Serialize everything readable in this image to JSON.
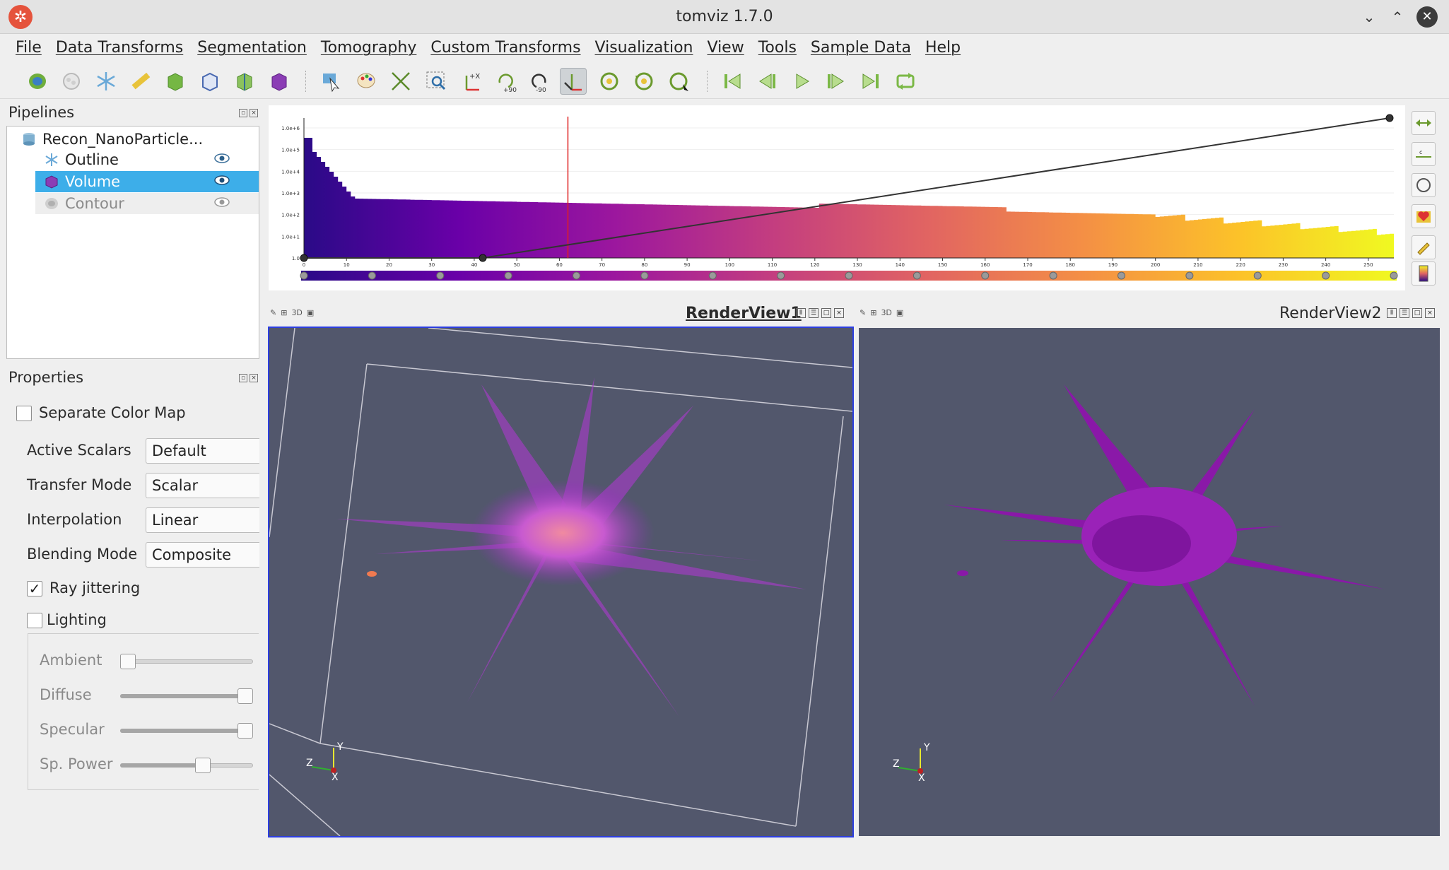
{
  "window": {
    "title": "tomviz 1.7.0"
  },
  "menu": [
    "File",
    "Data Transforms",
    "Segmentation",
    "Tomography",
    "Custom Transforms",
    "Visualization",
    "View",
    "Tools",
    "Sample Data",
    "Help"
  ],
  "toolbar": {
    "icons": [
      "open-data-icon",
      "segment-icon",
      "outline-icon",
      "ruler-icon",
      "slice-icon",
      "orthogonal-slice-icon",
      "threshold-icon",
      "volume-icon",
      "interact-icon",
      "color-map-icon",
      "reset-camera-icon",
      "zoom-box-icon",
      "axis-icon",
      "rotate-plus-90-icon",
      "rotate-minus-90-icon",
      "center-of-rotation-icon",
      "rotate-icon",
      "rotate-ccw-icon",
      "rotate-cw-icon",
      "first-frame-icon",
      "previous-frame-icon",
      "play-icon",
      "next-frame-icon",
      "last-frame-icon",
      "loop-icon"
    ],
    "rotate_plus_label": "+90",
    "rotate_minus_label": "-90",
    "axis_label": "+X"
  },
  "pipelines": {
    "title": "Pipelines",
    "root": "Recon_NanoParticle...",
    "items": [
      {
        "label": "Outline",
        "state": "normal"
      },
      {
        "label": "Volume",
        "state": "selected"
      },
      {
        "label": "Contour",
        "state": "dim"
      }
    ]
  },
  "properties": {
    "title": "Properties",
    "separate_color_map": "Separate Color Map",
    "rows": [
      {
        "label": "Active Scalars",
        "value": "Default"
      },
      {
        "label": "Transfer Mode",
        "value": "Scalar"
      },
      {
        "label": "Interpolation",
        "value": "Linear"
      },
      {
        "label": "Blending Mode",
        "value": "Composite"
      }
    ],
    "ray_jittering": "Ray jittering",
    "ray_jittering_checked": true,
    "lighting": "Lighting",
    "lighting_checked": false,
    "sliders": [
      {
        "label": "Ambient",
        "value": 0.0
      },
      {
        "label": "Diffuse",
        "value": 1.0
      },
      {
        "label": "Specular",
        "value": 1.0
      },
      {
        "label": "Sp. Power",
        "value": 0.64
      }
    ]
  },
  "histogram": {
    "y_ticks": [
      "1.0e+6",
      "1.0e+5",
      "1.0e+4",
      "1.0e+3",
      "1.0e+2",
      "1.0e+1",
      "1.0"
    ],
    "x_ticks": [
      "0",
      "10",
      "20",
      "30",
      "40",
      "50",
      "60",
      "70",
      "80",
      "90",
      "100",
      "110",
      "120",
      "130",
      "140",
      "150",
      "160",
      "170",
      "180",
      "190",
      "200",
      "210",
      "220",
      "230",
      "240",
      "250"
    ],
    "x_range": [
      0,
      256
    ],
    "marker_value": 62,
    "opacity_points": [
      [
        0,
        0
      ],
      [
        42,
        0
      ],
      [
        255,
        1
      ]
    ],
    "colormap": [
      "#2a0a87",
      "#6a00a8",
      "#9c179e",
      "#c33d80",
      "#e16462",
      "#f48f45",
      "#fcc229",
      "#f0f921"
    ]
  },
  "render_views": [
    {
      "title": "RenderView1",
      "mode": "3D",
      "active": true
    },
    {
      "title": "RenderView2",
      "mode": "3D",
      "active": false
    }
  ],
  "axes": {
    "x": "X",
    "y": "Y",
    "z": "Z"
  },
  "colors": {
    "accent": "#3daee9",
    "view_bg": "#52576c",
    "volume_magenta": "#a63cc8",
    "contour_purple": "#8a18a8"
  }
}
